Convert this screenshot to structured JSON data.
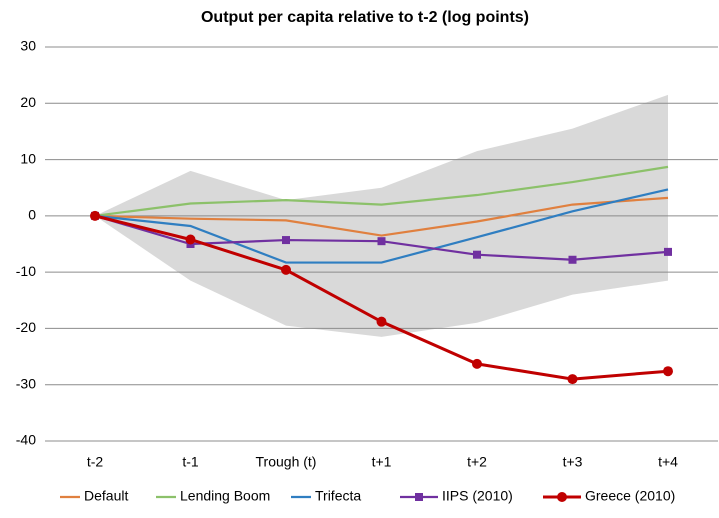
{
  "chart_data": {
    "type": "line",
    "title": "Output per capita relative to t-2 (log points)",
    "categories": [
      "t-2",
      "t-1",
      "Trough (t)",
      "t+1",
      "t+2",
      "t+3",
      "t+4"
    ],
    "ylim": [
      -40,
      30
    ],
    "yticks": [
      -40,
      -30,
      -20,
      -10,
      0,
      10,
      20,
      30
    ],
    "grid": true,
    "band": {
      "color": "#d9d9d9",
      "upper": [
        0,
        8,
        2.8,
        5,
        11.5,
        15.5,
        21.5
      ],
      "lower": [
        0,
        -11.5,
        -19.5,
        -21.5,
        -19,
        -14,
        -11.5
      ]
    },
    "legend": "bottom",
    "series": [
      {
        "name": "Default",
        "color": "#e0803f",
        "marker": "none",
        "values": [
          0,
          -0.5,
          -0.8,
          -3.5,
          -1,
          2,
          3.2
        ]
      },
      {
        "name": "Lending Boom",
        "color": "#8cc16a",
        "marker": "none",
        "values": [
          0,
          2.2,
          2.8,
          2,
          3.7,
          6,
          8.7
        ]
      },
      {
        "name": "Trifecta",
        "color": "#2f7ec1",
        "marker": "none",
        "values": [
          0,
          -1.8,
          -8.3,
          -8.3,
          -3.8,
          0.8,
          4.7
        ]
      },
      {
        "name": "IIPS (2010)",
        "color": "#7030a0",
        "marker": "square",
        "values": [
          0,
          -5,
          -4.3,
          -4.5,
          -6.9,
          -7.8,
          -6.4
        ]
      },
      {
        "name": "Greece (2010)",
        "color": "#c00000",
        "marker": "circle",
        "values": [
          0,
          -4.2,
          -9.6,
          -18.8,
          -26.3,
          -29,
          -27.6
        ]
      }
    ]
  }
}
